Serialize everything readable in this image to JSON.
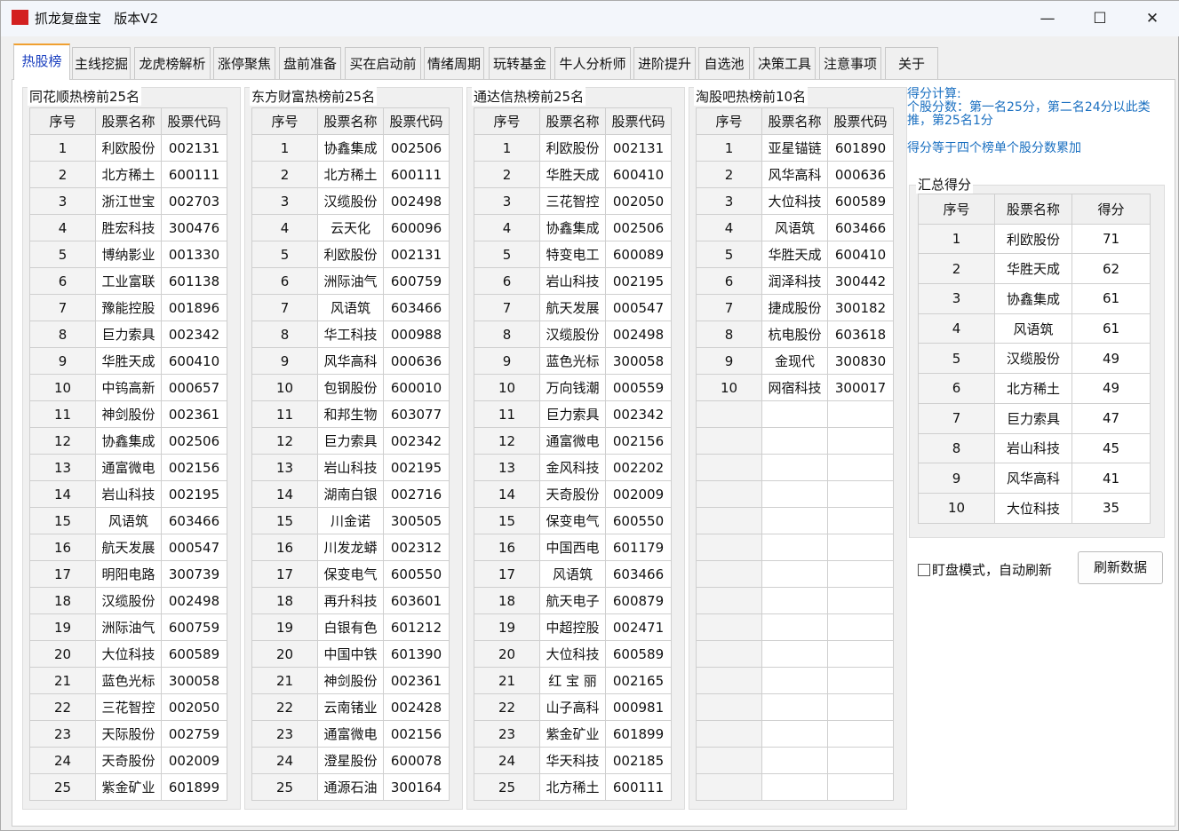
{
  "window": {
    "title": "抓龙复盘宝   版本V2",
    "minimize": "—",
    "maximize": "☐",
    "close": "✕"
  },
  "tabs": [
    "热股榜",
    "主线挖掘",
    "龙虎榜解析",
    "涨停聚焦",
    "盘前准备",
    "买在启动前",
    "情绪周期",
    "玩转基金",
    "牛人分析师",
    "进阶提升",
    "自选池",
    "决策工具",
    "注意事项",
    "关于"
  ],
  "selected_tab": "热股榜",
  "columns": [
    "序号",
    "股票名称",
    "股票代码"
  ],
  "lists": [
    {
      "title": "同花顺热榜前25名",
      "rows": [
        [
          "1",
          "利欧股份",
          "002131"
        ],
        [
          "2",
          "北方稀土",
          "600111"
        ],
        [
          "3",
          "浙江世宝",
          "002703"
        ],
        [
          "4",
          "胜宏科技",
          "300476"
        ],
        [
          "5",
          "博纳影业",
          "001330"
        ],
        [
          "6",
          "工业富联",
          "601138"
        ],
        [
          "7",
          "豫能控股",
          "001896"
        ],
        [
          "8",
          "巨力索具",
          "002342"
        ],
        [
          "9",
          "华胜天成",
          "600410"
        ],
        [
          "10",
          "中钨高新",
          "000657"
        ],
        [
          "11",
          "神剑股份",
          "002361"
        ],
        [
          "12",
          "协鑫集成",
          "002506"
        ],
        [
          "13",
          "通富微电",
          "002156"
        ],
        [
          "14",
          "岩山科技",
          "002195"
        ],
        [
          "15",
          "风语筑",
          "603466"
        ],
        [
          "16",
          "航天发展",
          "000547"
        ],
        [
          "17",
          "明阳电路",
          "300739"
        ],
        [
          "18",
          "汉缆股份",
          "002498"
        ],
        [
          "19",
          "洲际油气",
          "600759"
        ],
        [
          "20",
          "大位科技",
          "600589"
        ],
        [
          "21",
          "蓝色光标",
          "300058"
        ],
        [
          "22",
          "三花智控",
          "002050"
        ],
        [
          "23",
          "天际股份",
          "002759"
        ],
        [
          "24",
          "天奇股份",
          "002009"
        ],
        [
          "25",
          "紫金矿业",
          "601899"
        ]
      ]
    },
    {
      "title": "东方财富热榜前25名",
      "rows": [
        [
          "1",
          "协鑫集成",
          "002506"
        ],
        [
          "2",
          "北方稀土",
          "600111"
        ],
        [
          "3",
          "汉缆股份",
          "002498"
        ],
        [
          "4",
          "云天化",
          "600096"
        ],
        [
          "5",
          "利欧股份",
          "002131"
        ],
        [
          "6",
          "洲际油气",
          "600759"
        ],
        [
          "7",
          "风语筑",
          "603466"
        ],
        [
          "8",
          "华工科技",
          "000988"
        ],
        [
          "9",
          "风华高科",
          "000636"
        ],
        [
          "10",
          "包钢股份",
          "600010"
        ],
        [
          "11",
          "和邦生物",
          "603077"
        ],
        [
          "12",
          "巨力索具",
          "002342"
        ],
        [
          "13",
          "岩山科技",
          "002195"
        ],
        [
          "14",
          "湖南白银",
          "002716"
        ],
        [
          "15",
          "川金诺",
          "300505"
        ],
        [
          "16",
          "川发龙蟒",
          "002312"
        ],
        [
          "17",
          "保变电气",
          "600550"
        ],
        [
          "18",
          "再升科技",
          "603601"
        ],
        [
          "19",
          "白银有色",
          "601212"
        ],
        [
          "20",
          "中国中铁",
          "601390"
        ],
        [
          "21",
          "神剑股份",
          "002361"
        ],
        [
          "22",
          "云南锗业",
          "002428"
        ],
        [
          "23",
          "通富微电",
          "002156"
        ],
        [
          "24",
          "澄星股份",
          "600078"
        ],
        [
          "25",
          "通源石油",
          "300164"
        ]
      ]
    },
    {
      "title": "通达信热榜前25名",
      "rows": [
        [
          "1",
          "利欧股份",
          "002131"
        ],
        [
          "2",
          "华胜天成",
          "600410"
        ],
        [
          "3",
          "三花智控",
          "002050"
        ],
        [
          "4",
          "协鑫集成",
          "002506"
        ],
        [
          "5",
          "特变电工",
          "600089"
        ],
        [
          "6",
          "岩山科技",
          "002195"
        ],
        [
          "7",
          "航天发展",
          "000547"
        ],
        [
          "8",
          "汉缆股份",
          "002498"
        ],
        [
          "9",
          "蓝色光标",
          "300058"
        ],
        [
          "10",
          "万向钱潮",
          "000559"
        ],
        [
          "11",
          "巨力索具",
          "002342"
        ],
        [
          "12",
          "通富微电",
          "002156"
        ],
        [
          "13",
          "金风科技",
          "002202"
        ],
        [
          "14",
          "天奇股份",
          "002009"
        ],
        [
          "15",
          "保变电气",
          "600550"
        ],
        [
          "16",
          "中国西电",
          "601179"
        ],
        [
          "17",
          "风语筑",
          "603466"
        ],
        [
          "18",
          "航天电子",
          "600879"
        ],
        [
          "19",
          "中超控股",
          "002471"
        ],
        [
          "20",
          "大位科技",
          "600589"
        ],
        [
          "21",
          "红 宝 丽",
          "002165"
        ],
        [
          "22",
          "山子高科",
          "000981"
        ],
        [
          "23",
          "紫金矿业",
          "601899"
        ],
        [
          "24",
          "华天科技",
          "002185"
        ],
        [
          "25",
          "北方稀土",
          "600111"
        ]
      ]
    },
    {
      "title": "淘股吧热榜前10名",
      "rows": [
        [
          "1",
          "亚星锚链",
          "601890"
        ],
        [
          "2",
          "风华高科",
          "000636"
        ],
        [
          "3",
          "大位科技",
          "600589"
        ],
        [
          "4",
          "风语筑",
          "603466"
        ],
        [
          "5",
          "华胜天成",
          "600410"
        ],
        [
          "6",
          "润泽科技",
          "300442"
        ],
        [
          "7",
          "捷成股份",
          "300182"
        ],
        [
          "8",
          "杭电股份",
          "603618"
        ],
        [
          "9",
          "金现代",
          "300830"
        ],
        [
          "10",
          "网宿科技",
          "300017"
        ]
      ]
    }
  ],
  "score_info": {
    "line1": "得分计算:",
    "line2": "个股分数：第一名25分，第二名24分以此类推，第25名1分",
    "line3": "得分等于四个榜单个股分数累加"
  },
  "summary": {
    "title": "汇总得分",
    "columns": [
      "序号",
      "股票名称",
      "得分"
    ],
    "rows": [
      [
        "1",
        "利欧股份",
        "71"
      ],
      [
        "2",
        "华胜天成",
        "62"
      ],
      [
        "3",
        "协鑫集成",
        "61"
      ],
      [
        "4",
        "风语筑",
        "61"
      ],
      [
        "5",
        "汉缆股份",
        "49"
      ],
      [
        "6",
        "北方稀土",
        "49"
      ],
      [
        "7",
        "巨力索具",
        "47"
      ],
      [
        "8",
        "岩山科技",
        "45"
      ],
      [
        "9",
        "风华高科",
        "41"
      ],
      [
        "10",
        "大位科技",
        "35"
      ]
    ]
  },
  "auto_refresh": {
    "label": "盯盘模式，自动刷新",
    "checked": false
  },
  "refresh_button": "刷新数据",
  "colors": {
    "accent": "#1a3fbf",
    "info_text": "#1a6fc0",
    "icon_red": "#d32020"
  }
}
